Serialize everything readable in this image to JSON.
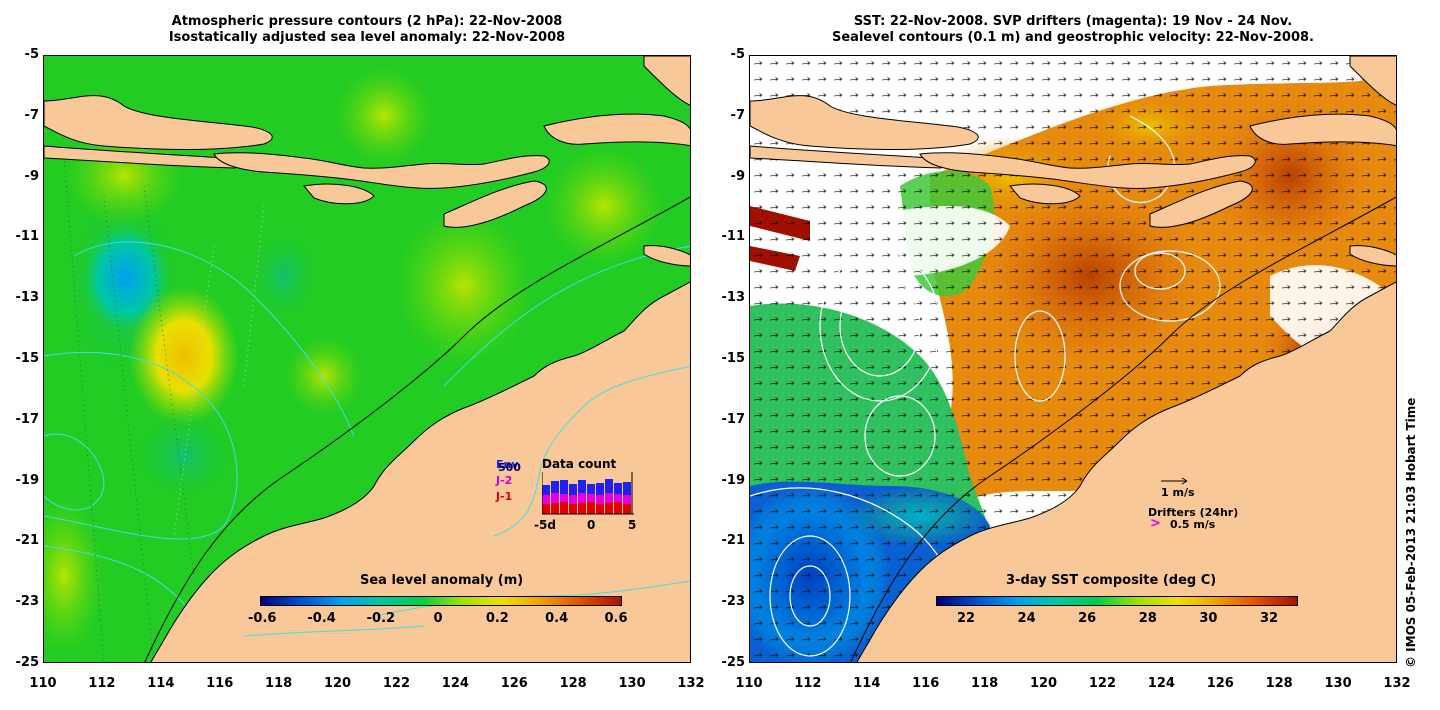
{
  "left_panel": {
    "title_line1": "Atmospheric pressure contours (2 hPa): 22-Nov-2008",
    "title_line2": "Isostatically adjusted sea level anomaly: 22-Nov-2008",
    "colorbar_title": "Sea level anomaly (m)",
    "colorbar_ticks": [
      "-0.6",
      "-0.4",
      "-0.2",
      "0",
      "0.2",
      "0.4",
      "0.6"
    ],
    "colorbar_colors": [
      "#00007a",
      "#0050d0",
      "#00a0f0",
      "#00c8a0",
      "#00d040",
      "#a0e000",
      "#f0e000",
      "#f0a000",
      "#e05000",
      "#b01000"
    ],
    "data_count": {
      "title": "Data count",
      "labels": [
        "Env",
        "J-2",
        "J-1"
      ],
      "value": "500",
      "label_colors": [
        "#2020d0",
        "#d000d0",
        "#e00000"
      ],
      "axis_ticks": [
        "-5d",
        "0",
        "5"
      ]
    },
    "land_color": "#f8c898",
    "ocean_color": "#22cc22"
  },
  "right_panel": {
    "title_line1": "SST: 22-Nov-2008. SVP drifters (magenta): 19 Nov - 24 Nov.",
    "title_line2": "Sealevel contours (0.1 m) and geostrophic velocity: 22-Nov-2008.",
    "colorbar_title": "3-day SST composite (deg C)",
    "colorbar_ticks": [
      "22",
      "24",
      "26",
      "28",
      "30",
      "32"
    ],
    "colorbar_colors": [
      "#00007a",
      "#0050d0",
      "#00a0f0",
      "#00c8a0",
      "#00d040",
      "#a0e000",
      "#f0e000",
      "#f0a000",
      "#e05000",
      "#b01000"
    ],
    "velocity_scale": "1 m/s",
    "drifters_label": "Drifters (24hr)",
    "drifters_scale": "0.5 m/s",
    "land_color": "#f8c898"
  },
  "axes": {
    "x_ticks": [
      "110",
      "112",
      "114",
      "116",
      "118",
      "120",
      "122",
      "124",
      "126",
      "128",
      "130",
      "132"
    ],
    "y_ticks": [
      "-5",
      "-7",
      "-9",
      "-11",
      "-13",
      "-15",
      "-17",
      "-19",
      "-21",
      "-23",
      "-25"
    ]
  },
  "credit": "© IMOS 05-Feb-2013 21:03 Hobart Time"
}
